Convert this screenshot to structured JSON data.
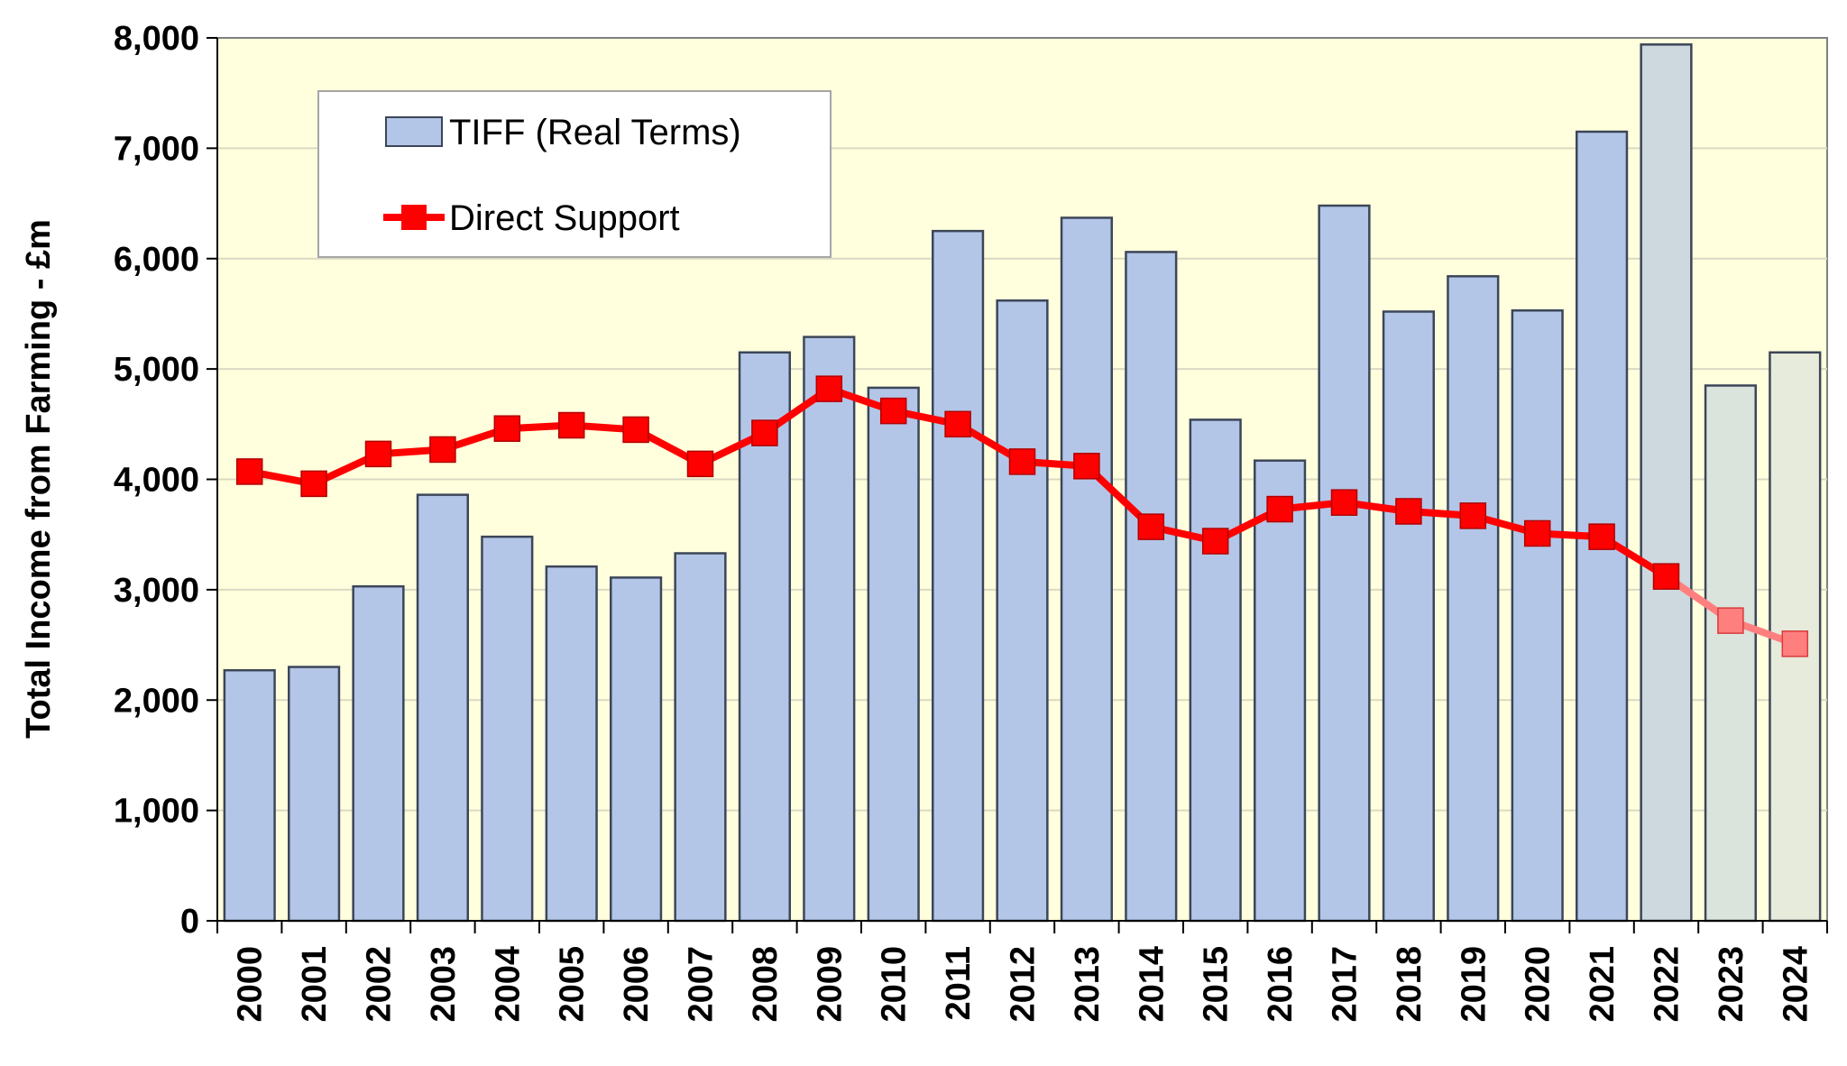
{
  "chart_data": {
    "type": "bar",
    "ylabel": "Total Income from Farming - £m",
    "xlabel": "",
    "ylim": [
      0,
      8000
    ],
    "yticks": [
      0,
      1000,
      2000,
      3000,
      4000,
      5000,
      6000,
      7000,
      8000
    ],
    "ytick_labels": [
      "0",
      "1,000",
      "2,000",
      "3,000",
      "4,000",
      "5,000",
      "6,000",
      "7,000",
      "8,000"
    ],
    "grid": true,
    "legend_position": "top-left",
    "categories": [
      "2000",
      "2001",
      "2002",
      "2003",
      "2004",
      "2005",
      "2006",
      "2007",
      "2008",
      "2009",
      "2010",
      "2011",
      "2012",
      "2013",
      "2014",
      "2015",
      "2016",
      "2017",
      "2018",
      "2019",
      "2020",
      "2021",
      "2022",
      "2023",
      "2024"
    ],
    "series": [
      {
        "name": "TIFF (Real Terms)",
        "type": "bar",
        "values": [
          2270,
          2300,
          3030,
          3860,
          3480,
          3210,
          3110,
          3330,
          5150,
          5290,
          4830,
          6250,
          5620,
          6370,
          6060,
          4540,
          4170,
          6480,
          5520,
          5840,
          5530,
          7150,
          7940,
          4850,
          5150
        ],
        "color": "#b4c6e7",
        "highlight_from": "2022",
        "highlight_colors": [
          "#cdd9de",
          "#dbe3dd",
          "#e6ebdb"
        ]
      },
      {
        "name": "Direct Support",
        "type": "line",
        "values": [
          4070,
          3960,
          4230,
          4270,
          4460,
          4490,
          4450,
          4140,
          4420,
          4820,
          4620,
          4500,
          4160,
          4120,
          3570,
          3440,
          3730,
          3790,
          3710,
          3670,
          3510,
          3480,
          3120,
          2720,
          2510
        ],
        "color": "#ff0000",
        "projection_from": "2023",
        "projection_color": "#ff7f7f"
      }
    ],
    "colors": {
      "plot_background": "#ffffdd",
      "bar_edge": "#3c4658",
      "gridline": "#d9d9c4"
    }
  }
}
